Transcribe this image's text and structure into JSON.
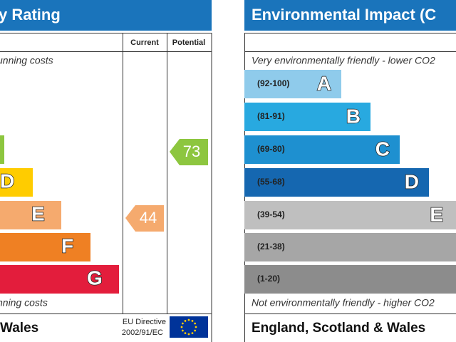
{
  "left_panel": {
    "title": "y Rating",
    "columns": {
      "current": "Current",
      "potential": "Potential"
    },
    "top_note": "unning costs",
    "bands": [
      {
        "letter": "D"
      },
      {
        "letter": "E"
      },
      {
        "letter": "F"
      },
      {
        "letter": "G"
      }
    ],
    "current": {
      "value": 44
    },
    "potential": {
      "value": 73
    },
    "bottom_note": "nning costs",
    "footer": {
      "region": "Wales",
      "directive_1": "EU Directive",
      "directive_2": "2002/91/EC"
    }
  },
  "right_panel": {
    "title": "Environmental Impact (C",
    "top_note": "Very environmentally friendly - lower CO2",
    "bands": [
      {
        "range": "(92-100)",
        "letter": "A"
      },
      {
        "range": "(81-91)",
        "letter": "B"
      },
      {
        "range": "(69-80)",
        "letter": "C"
      },
      {
        "range": "(55-68)",
        "letter": "D"
      },
      {
        "range": "(39-54)",
        "letter": "E"
      },
      {
        "range": "(21-38)"
      },
      {
        "range": "(1-20)"
      }
    ],
    "bottom_note": "Not environmentally friendly - higher CO2",
    "footer": {
      "region": "England, Scotland & Wales"
    }
  }
}
